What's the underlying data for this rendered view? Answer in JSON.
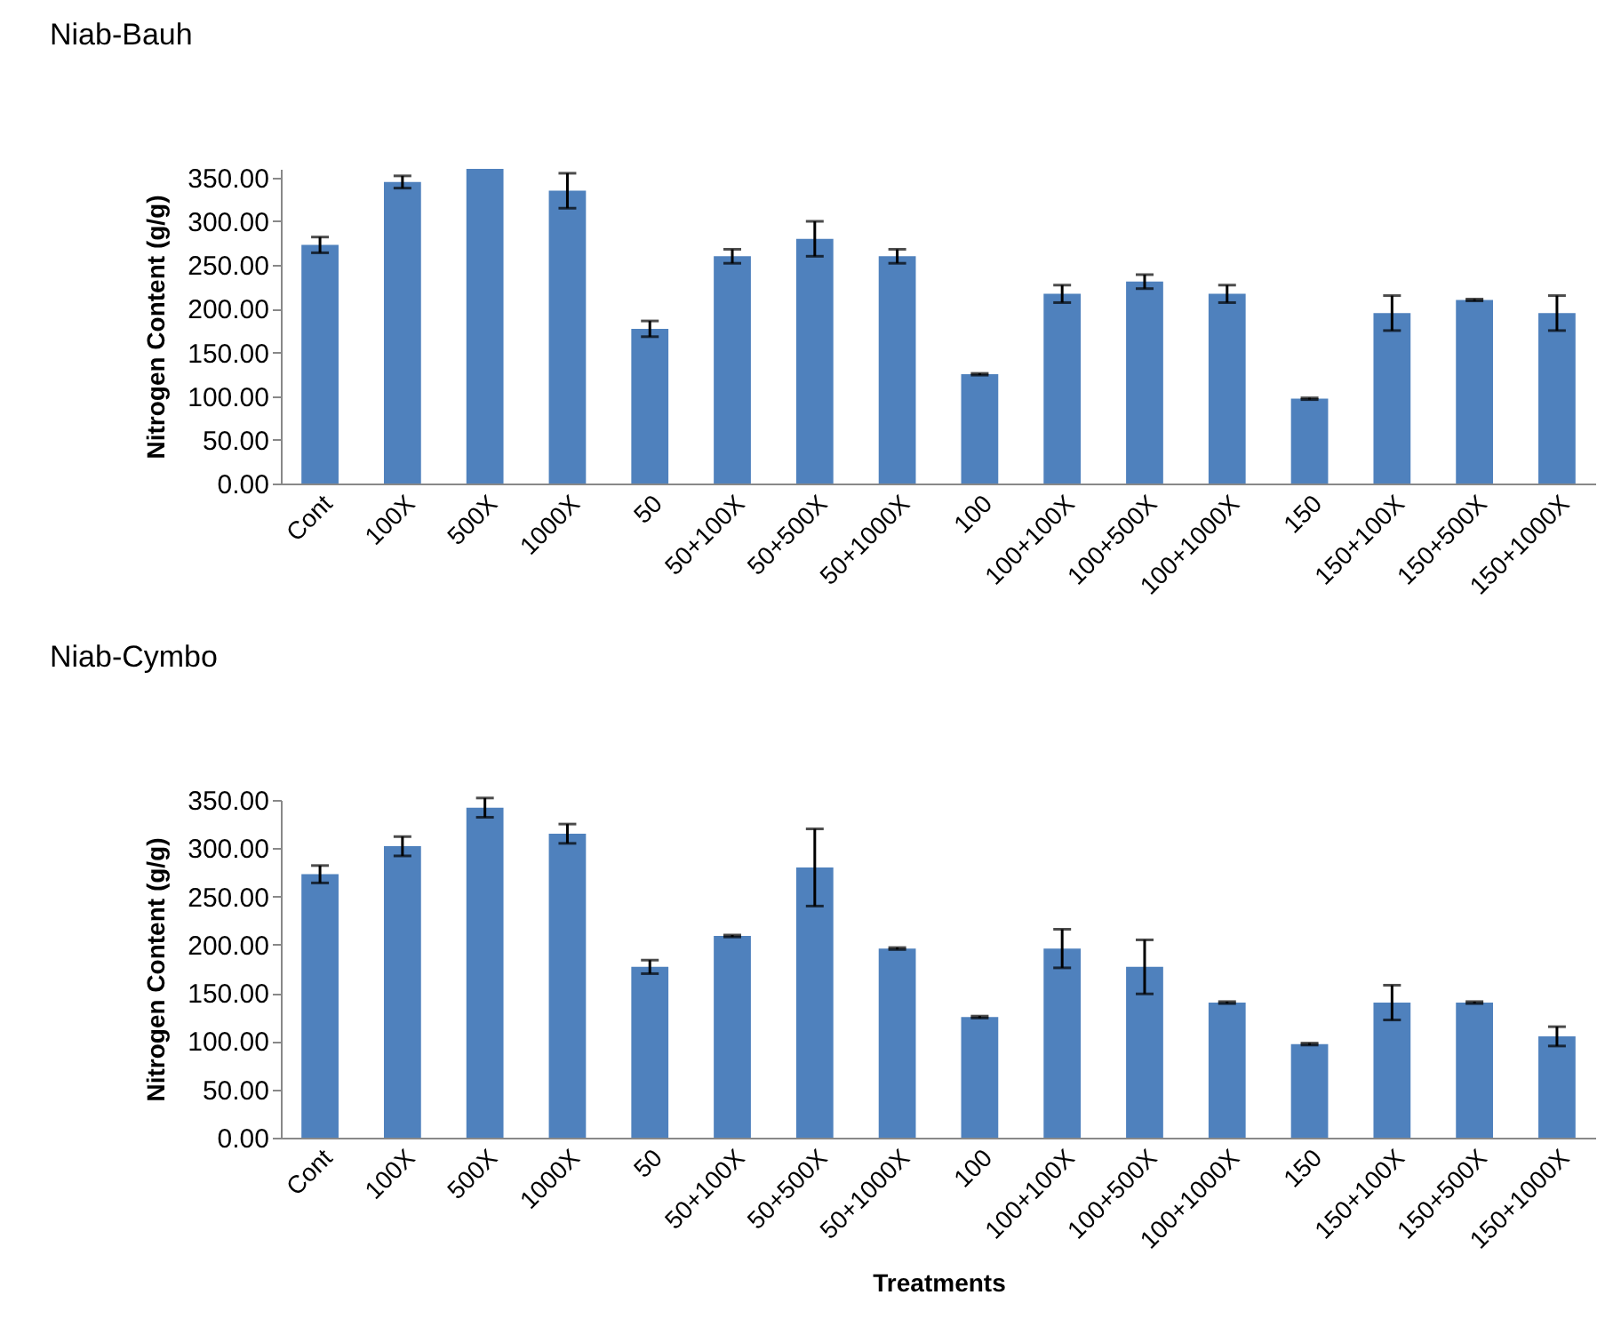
{
  "chart_data": [
    {
      "type": "bar",
      "title": "Niab-Bauh",
      "ylabel": "Nitrogen Content (g/g)",
      "categories": [
        "Cont",
        "100X",
        "500X",
        "1000X",
        "50",
        "50+100X",
        "50+500X",
        "50+1000X",
        "100",
        "100+100X",
        "100+500X",
        "100+1000X",
        "150",
        "150+100X",
        "150+500X",
        "150+1000X"
      ],
      "values": [
        273,
        345,
        360,
        335,
        177,
        260,
        280,
        260,
        125,
        217,
        231,
        217,
        97,
        195,
        210,
        195
      ],
      "errors": [
        9,
        7,
        null,
        20,
        9,
        8,
        20,
        8,
        1,
        10,
        8,
        10,
        1,
        20,
        1,
        20
      ],
      "color": "#4f81bd",
      "ylim": [
        0,
        360
      ],
      "yticks": [
        {
          "value": 0,
          "label": "0.00"
        },
        {
          "value": 50,
          "label": "50.00"
        },
        {
          "value": 100,
          "label": "100.00"
        },
        {
          "value": 150,
          "label": "150.00"
        },
        {
          "value": 200,
          "label": "200.00"
        },
        {
          "value": 250,
          "label": "250.00"
        },
        {
          "value": 300,
          "label": "300.00"
        },
        {
          "value": 350,
          "label": "350.00"
        }
      ],
      "grid": false
    },
    {
      "type": "bar",
      "title": "Niab-Cymbo",
      "ylabel": "Nitrogen Content (g/g)",
      "xlabel": "Treatments",
      "categories": [
        "Cont",
        "100X",
        "500X",
        "1000X",
        "50",
        "50+100X",
        "50+500X",
        "50+1000X",
        "100",
        "100+100X",
        "100+500X",
        "100+1000X",
        "150",
        "150+100X",
        "150+500X",
        "150+1000X"
      ],
      "values": [
        273,
        302,
        342,
        315,
        177,
        209,
        280,
        196,
        125,
        196,
        177,
        140,
        97,
        140,
        140,
        105
      ],
      "errors": [
        9,
        10,
        10,
        10,
        7,
        1,
        40,
        1,
        1,
        20,
        28,
        1,
        1,
        18,
        1,
        10
      ],
      "color": "#4f81bd",
      "ylim": [
        0,
        350
      ],
      "yticks": [
        {
          "value": 0,
          "label": "0.00"
        },
        {
          "value": 50,
          "label": "50.00"
        },
        {
          "value": 100,
          "label": "100.00"
        },
        {
          "value": 150,
          "label": "150.00"
        },
        {
          "value": 200,
          "label": "200.00"
        },
        {
          "value": 250,
          "label": "250.00"
        },
        {
          "value": 300,
          "label": "300.00"
        },
        {
          "value": 350,
          "label": "350.00"
        }
      ],
      "grid": false
    }
  ]
}
